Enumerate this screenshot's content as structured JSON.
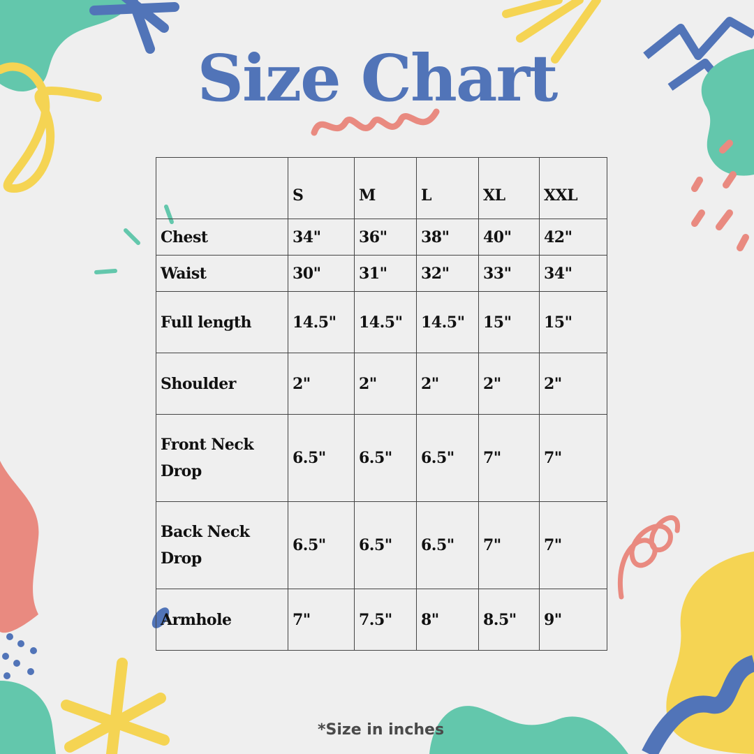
{
  "title": "Size Chart",
  "colors": {
    "title": "#5174b8",
    "teal": "#63c7ac",
    "yellow": "#f5d453",
    "coral": "#e98a80",
    "blue": "#5174b8",
    "background": "#efefef"
  },
  "table": {
    "headers": [
      "",
      "S",
      "M",
      "L",
      "XL",
      "XXL"
    ],
    "rows": [
      {
        "label": "Chest",
        "values": [
          "34\"",
          "36\"",
          "38\"",
          "40\"",
          "42\""
        ]
      },
      {
        "label": "Waist",
        "values": [
          "30\"",
          "31\"",
          "32\"",
          "33\"",
          "34\""
        ]
      },
      {
        "label": "Full length",
        "values": [
          "14.5\"",
          "14.5\"",
          "14.5\"",
          "15\"",
          "15\""
        ]
      },
      {
        "label": "Shoulder",
        "values": [
          "2\"",
          "2\"",
          "2\"",
          "2\"",
          "2\""
        ]
      },
      {
        "label": "Front Neck Drop",
        "values": [
          "6.5\"",
          "6.5\"",
          "6.5\"",
          "7\"",
          "7\""
        ]
      },
      {
        "label": "Back Neck Drop",
        "values": [
          "6.5\"",
          "6.5\"",
          "6.5\"",
          "7\"",
          "7\""
        ]
      },
      {
        "label": "Armhole",
        "values": [
          "7\"",
          "7.5\"",
          "8\"",
          "8.5\"",
          "9\""
        ]
      }
    ]
  },
  "footnote": "*Size in inches"
}
